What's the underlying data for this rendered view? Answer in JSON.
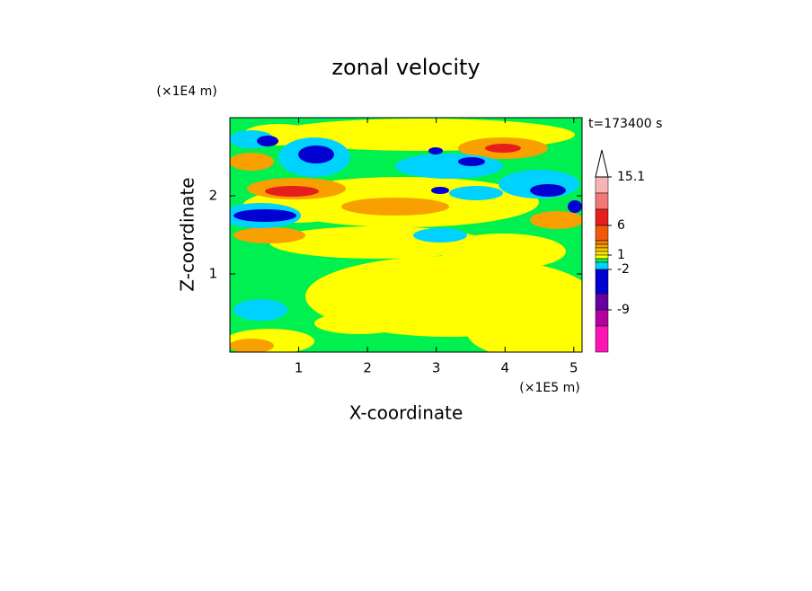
{
  "chart_data": {
    "type": "contour",
    "title": "zonal velocity",
    "x_label": "X-coordinate",
    "y_label": "Z-coordinate",
    "x_unit": "(×1E5 m)",
    "y_unit": "(×1E4 m)",
    "annotation": "t=173400 s",
    "xlim": [
      0,
      5.12
    ],
    "ylim": [
      0,
      3
    ],
    "xticks": [
      1,
      2,
      3,
      4,
      5
    ],
    "yticks": [
      1,
      2
    ],
    "colorbar": {
      "ticks": [
        15.1,
        6,
        1,
        -2,
        -9
      ],
      "extend": "max",
      "colors": [
        "#f8b4b4",
        "#f07878",
        "#e61e1e",
        "#f05a0a",
        "#f58200",
        "#f8a000",
        "#ffc800",
        "#ffe600",
        "#ffff00",
        "#00f050",
        "#00d2ff",
        "#0000d2",
        "#6400a0",
        "#b400a0",
        "#ff14b4"
      ]
    }
  }
}
